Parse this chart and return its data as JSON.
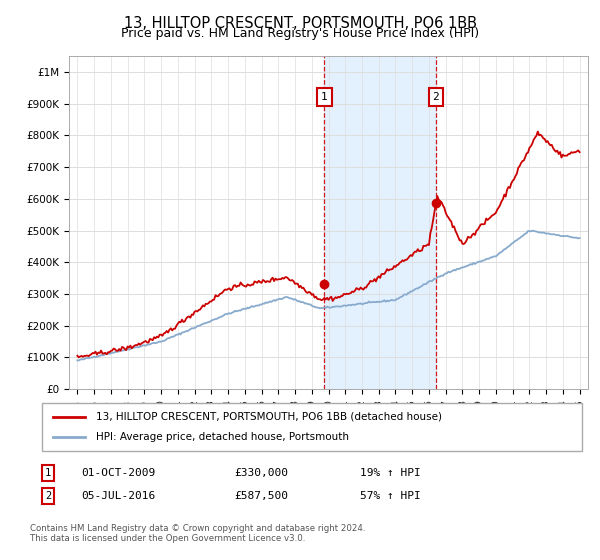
{
  "title": "13, HILLTOP CRESCENT, PORTSMOUTH, PO6 1BB",
  "subtitle": "Price paid vs. HM Land Registry's House Price Index (HPI)",
  "title_fontsize": 10.5,
  "subtitle_fontsize": 9,
  "ylabel_ticks": [
    0,
    100000,
    200000,
    300000,
    400000,
    500000,
    600000,
    700000,
    800000,
    900000,
    1000000
  ],
  "ylabel_labels": [
    "£0",
    "£100K",
    "£200K",
    "£300K",
    "£400K",
    "£500K",
    "£600K",
    "£700K",
    "£800K",
    "£900K",
    "£1M"
  ],
  "ylim": [
    0,
    1050000
  ],
  "xlim_start": 1994.5,
  "xlim_end": 2025.5,
  "sale1_year": 2009.75,
  "sale1_price": 330000,
  "sale1_label": "1",
  "sale1_date": "01-OCT-2009",
  "sale1_price_str": "£330,000",
  "sale1_hpi": "19% ↑ HPI",
  "sale2_year": 2016.42,
  "sale2_price": 587500,
  "sale2_label": "2",
  "sale2_date": "05-JUL-2016",
  "sale2_price_str": "£587,500",
  "sale2_hpi": "57% ↑ HPI",
  "red_line_color": "#cc0000",
  "blue_line_color": "#88aacc",
  "shade_color": "#ddeeff",
  "vline_color": "#cc0000",
  "marker_box_color": "#cc0000",
  "legend_line1": "13, HILLTOP CRESCENT, PORTSMOUTH, PO6 1BB (detached house)",
  "legend_line2": "HPI: Average price, detached house, Portsmouth",
  "footnote": "Contains HM Land Registry data © Crown copyright and database right 2024.\nThis data is licensed under the Open Government Licence v3.0.",
  "background_color": "#ffffff",
  "plot_bg_color": "#ffffff"
}
